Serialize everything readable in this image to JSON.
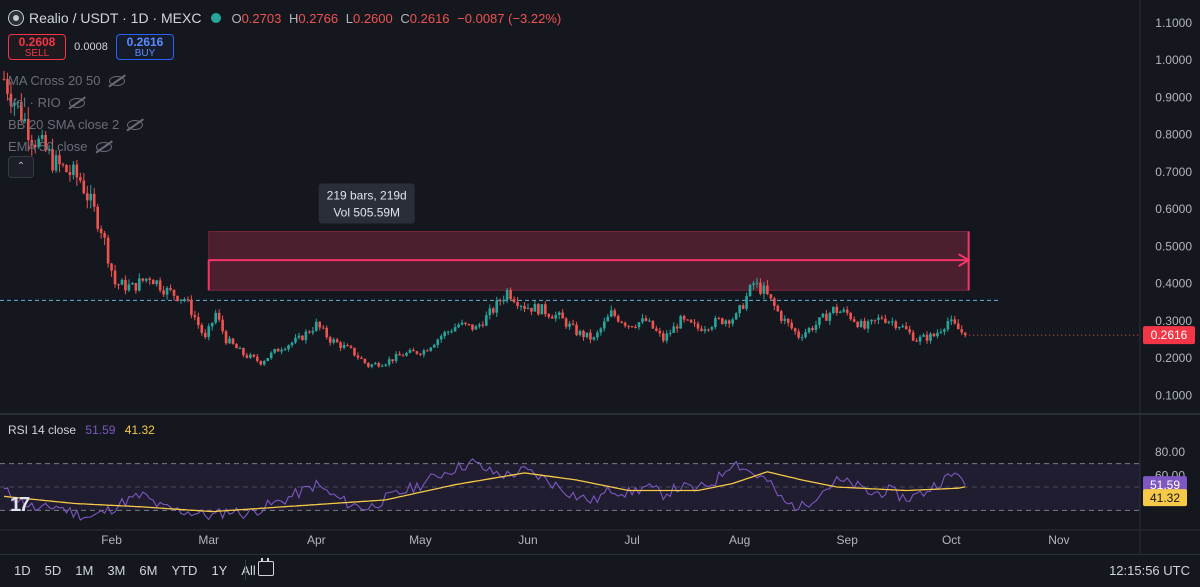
{
  "header": {
    "symbol": "Realio / USDT · 1D · MEXC",
    "open_key": "O",
    "open": "0.2703",
    "high_key": "H",
    "high": "0.2766",
    "low_key": "L",
    "low": "0.2600",
    "close_key": "C",
    "close": "0.2616",
    "change": "−0.0087 (−3.22%)",
    "colors": {
      "down": "#ef5350",
      "up": "#26a69a"
    }
  },
  "trade": {
    "sell_price": "0.2608",
    "sell_label": "SELL",
    "spread": "0.0008",
    "buy_price": "0.2616",
    "buy_label": "BUY"
  },
  "indicators": [
    "MA Cross 20 50",
    "Vol · RIO",
    "BB 20 SMA close 2",
    "EMA 50 close"
  ],
  "rsi_legend": {
    "label": "RSI 14 close",
    "rsi": "51.59",
    "ma": "41.32"
  },
  "bottom_bar": {
    "ranges": [
      "1D",
      "5D",
      "1M",
      "3M",
      "6M",
      "YTD",
      "1Y",
      "All"
    ],
    "time": "12:15:56 UTC"
  },
  "chart_data": {
    "type": "candlestick",
    "price_axis": {
      "ticks": [
        "1.1000",
        "1.0000",
        "0.9000",
        "0.8000",
        "0.7000",
        "0.6000",
        "0.5000",
        "0.4000",
        "0.3000",
        "0.2000",
        "0.1000"
      ],
      "range": [
        0.05,
        1.14
      ]
    },
    "rsi_axis": {
      "ticks": [
        "80.00",
        "60.00"
      ],
      "range": [
        15,
        85
      ],
      "bands": [
        70,
        30
      ]
    },
    "x_labels": [
      "Feb",
      "Mar",
      "Apr",
      "May",
      "Jun",
      "Jul",
      "Aug",
      "Sep",
      "Oct",
      "Nov"
    ],
    "x_label_days": [
      31,
      59,
      90,
      120,
      151,
      181,
      212,
      243,
      273,
      304
    ],
    "last_day": 277,
    "current_price": "0.2616",
    "current_price_value": 0.2616,
    "horizontal_line": 0.355,
    "measure": {
      "from_day": 59,
      "to_day": 278,
      "bottom": 0.382,
      "top": 0.54,
      "arrow_price": 0.463,
      "line1": "219 bars, 219d",
      "line2": "Vol 505.59M"
    },
    "rsi_current": "51.59",
    "rsi_ma_current": "41.32",
    "rsi_current_value": 51.59,
    "rsi_ma_current_value": 41.32,
    "close_path": [
      [
        0,
        0.95
      ],
      [
        8,
        0.8
      ],
      [
        15,
        0.72
      ],
      [
        22,
        0.68
      ],
      [
        28,
        0.55
      ],
      [
        32,
        0.4
      ],
      [
        37,
        0.39
      ],
      [
        42,
        0.42
      ],
      [
        47,
        0.38
      ],
      [
        52,
        0.36
      ],
      [
        55,
        0.31
      ],
      [
        58,
        0.25
      ],
      [
        61,
        0.32
      ],
      [
        64,
        0.25
      ],
      [
        69,
        0.21
      ],
      [
        74,
        0.19
      ],
      [
        80,
        0.23
      ],
      [
        85,
        0.25
      ],
      [
        90,
        0.29
      ],
      [
        94,
        0.25
      ],
      [
        100,
        0.22
      ],
      [
        105,
        0.18
      ],
      [
        110,
        0.19
      ],
      [
        115,
        0.21
      ],
      [
        121,
        0.22
      ],
      [
        126,
        0.26
      ],
      [
        131,
        0.29
      ],
      [
        136,
        0.28
      ],
      [
        141,
        0.33
      ],
      [
        145,
        0.38
      ],
      [
        150,
        0.34
      ],
      [
        155,
        0.33
      ],
      [
        160,
        0.31
      ],
      [
        165,
        0.27
      ],
      [
        170,
        0.25
      ],
      [
        175,
        0.32
      ],
      [
        180,
        0.29
      ],
      [
        185,
        0.3
      ],
      [
        190,
        0.25
      ],
      [
        195,
        0.3
      ],
      [
        200,
        0.28
      ],
      [
        206,
        0.3
      ],
      [
        211,
        0.31
      ],
      [
        216,
        0.4
      ],
      [
        219,
        0.38
      ],
      [
        224,
        0.31
      ],
      [
        229,
        0.26
      ],
      [
        234,
        0.29
      ],
      [
        239,
        0.33
      ],
      [
        243,
        0.32
      ],
      [
        248,
        0.28
      ],
      [
        253,
        0.31
      ],
      [
        258,
        0.29
      ],
      [
        263,
        0.25
      ],
      [
        268,
        0.26
      ],
      [
        272,
        0.3
      ],
      [
        276,
        0.27
      ],
      [
        281,
        0.25
      ],
      [
        286,
        0.22
      ],
      [
        291,
        0.24
      ],
      [
        296,
        0.27
      ]
    ],
    "rsi_path": [
      [
        0,
        47
      ],
      [
        5,
        38
      ],
      [
        10,
        30
      ],
      [
        15,
        34
      ],
      [
        20,
        28
      ],
      [
        25,
        24
      ],
      [
        30,
        30
      ],
      [
        35,
        38
      ],
      [
        40,
        43
      ],
      [
        45,
        33
      ],
      [
        50,
        30
      ],
      [
        55,
        28
      ],
      [
        60,
        25
      ],
      [
        65,
        30
      ],
      [
        70,
        27
      ],
      [
        75,
        33
      ],
      [
        80,
        38
      ],
      [
        85,
        45
      ],
      [
        90,
        52
      ],
      [
        95,
        42
      ],
      [
        100,
        35
      ],
      [
        105,
        32
      ],
      [
        110,
        40
      ],
      [
        115,
        46
      ],
      [
        120,
        52
      ],
      [
        125,
        60
      ],
      [
        130,
        66
      ],
      [
        135,
        71
      ],
      [
        140,
        63
      ],
      [
        145,
        60
      ],
      [
        150,
        64
      ],
      [
        155,
        58
      ],
      [
        160,
        50
      ],
      [
        165,
        42
      ],
      [
        170,
        38
      ],
      [
        175,
        48
      ],
      [
        180,
        45
      ],
      [
        185,
        50
      ],
      [
        190,
        44
      ],
      [
        195,
        50
      ],
      [
        200,
        48
      ],
      [
        205,
        55
      ],
      [
        210,
        72
      ],
      [
        215,
        63
      ],
      [
        220,
        55
      ],
      [
        225,
        36
      ],
      [
        230,
        33
      ],
      [
        235,
        45
      ],
      [
        240,
        55
      ],
      [
        245,
        52
      ],
      [
        250,
        44
      ],
      [
        255,
        47
      ],
      [
        260,
        40
      ],
      [
        265,
        45
      ],
      [
        270,
        55
      ],
      [
        275,
        62
      ],
      [
        280,
        57
      ],
      [
        285,
        42
      ],
      [
        290,
        35
      ],
      [
        295,
        37
      ],
      [
        300,
        50
      ]
    ],
    "rsi_ma_path": [
      [
        0,
        42
      ],
      [
        20,
        36
      ],
      [
        40,
        33
      ],
      [
        60,
        29
      ],
      [
        80,
        33
      ],
      [
        100,
        37
      ],
      [
        110,
        39
      ],
      [
        130,
        52
      ],
      [
        150,
        62
      ],
      [
        165,
        56
      ],
      [
        180,
        47
      ],
      [
        200,
        47
      ],
      [
        210,
        53
      ],
      [
        220,
        63
      ],
      [
        230,
        56
      ],
      [
        240,
        50
      ],
      [
        260,
        47
      ],
      [
        275,
        49
      ],
      [
        285,
        55
      ],
      [
        295,
        47
      ],
      [
        305,
        41.32
      ]
    ]
  }
}
